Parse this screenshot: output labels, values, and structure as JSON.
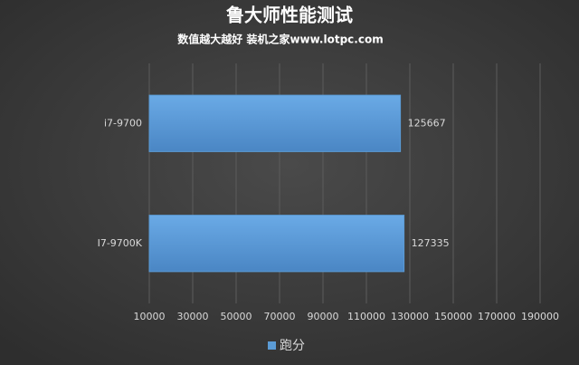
{
  "chart_data": {
    "type": "hbar",
    "title": "鲁大师性能测试",
    "subtitle": "数值越大越好 装机之家www.lotpc.com",
    "categories": [
      "i7-9700",
      "I7-9700K"
    ],
    "series": [
      {
        "name": "跑分",
        "color": "#5b9bd5",
        "values": [
          125667,
          127335
        ]
      }
    ],
    "xlim": [
      10000,
      200000
    ],
    "xticks": [
      10000,
      30000,
      50000,
      70000,
      90000,
      110000,
      130000,
      150000,
      170000,
      190000
    ],
    "grid": true,
    "legend": "bottom"
  }
}
